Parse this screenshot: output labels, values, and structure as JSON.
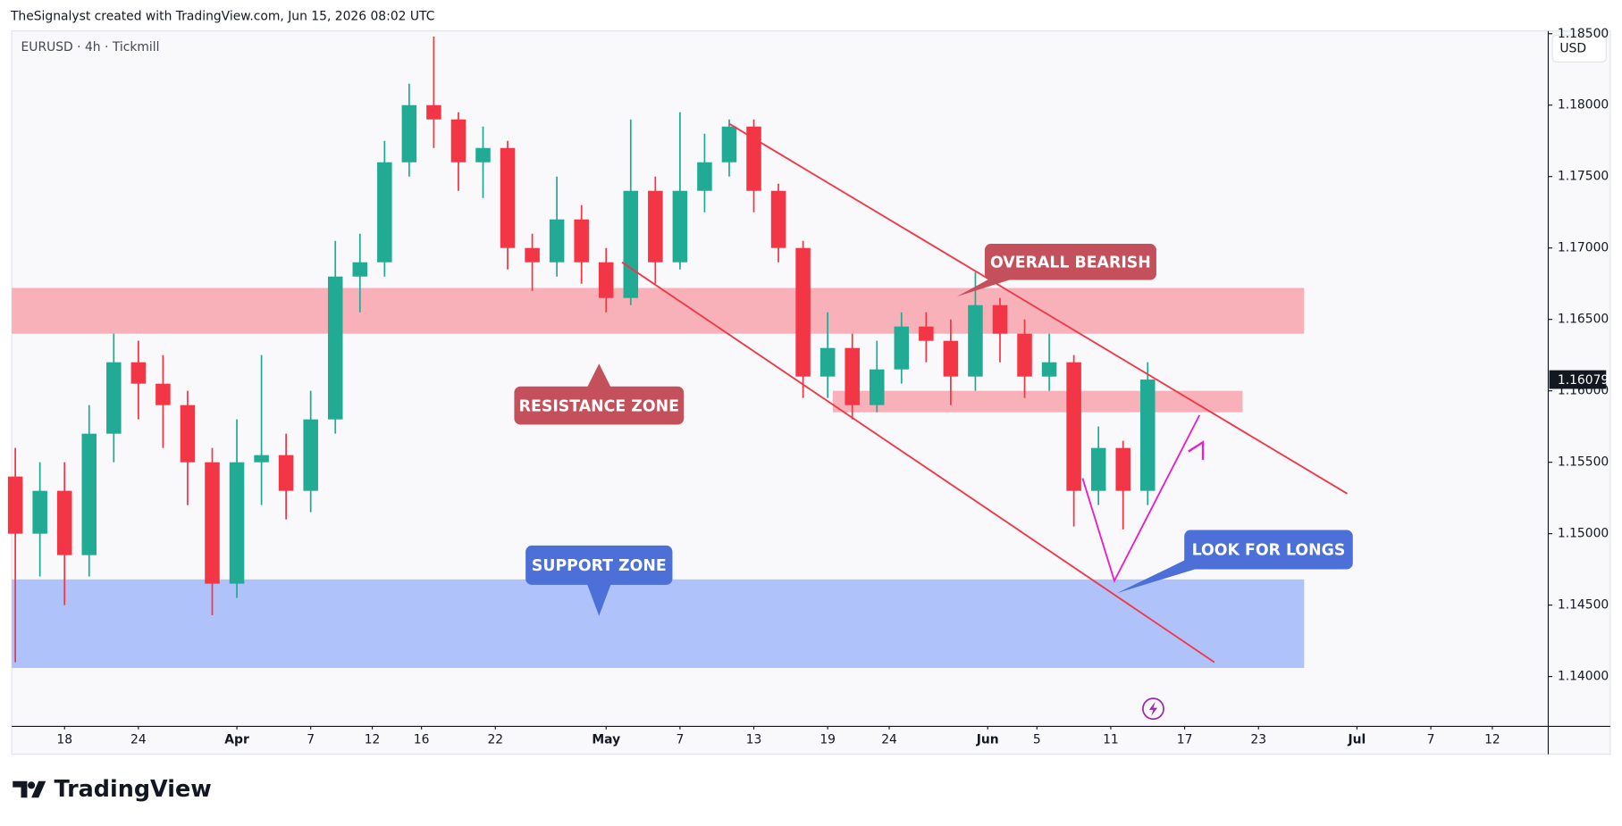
{
  "header": {
    "credit": "TheSignalyst created with TradingView.com, Jun 15, 2026 08:02 UTC",
    "logo": "TradingView"
  },
  "chart_data": {
    "type": "candlestick",
    "title": "EURUSD · 4h · Tickmill",
    "currency": "USD",
    "up_color": "#22ab94",
    "down_color": "#f23645",
    "grid": false,
    "x": [
      "2026-03-14",
      "2026-03-16",
      "2026-03-18",
      "2026-03-20",
      "2026-03-22",
      "2026-03-24",
      "2026-03-26",
      "2026-03-28",
      "2026-03-30",
      "2026-04-01",
      "2026-04-03",
      "2026-04-05",
      "2026-04-07",
      "2026-04-09",
      "2026-04-11",
      "2026-04-13",
      "2026-04-15",
      "2026-04-17",
      "2026-04-19",
      "2026-04-21",
      "2026-04-23",
      "2026-04-25",
      "2026-04-27",
      "2026-04-29",
      "2026-05-01",
      "2026-05-03",
      "2026-05-05",
      "2026-05-07",
      "2026-05-09",
      "2026-05-11",
      "2026-05-13",
      "2026-05-15",
      "2026-05-17",
      "2026-05-19",
      "2026-05-21",
      "2026-05-23",
      "2026-05-25",
      "2026-05-27",
      "2026-05-29",
      "2026-05-31",
      "2026-06-02",
      "2026-06-04",
      "2026-06-06",
      "2026-06-08",
      "2026-06-10",
      "2026-06-12",
      "2026-06-14"
    ],
    "open": [
      1.154,
      1.15,
      1.153,
      1.1485,
      1.157,
      1.162,
      1.1605,
      1.159,
      1.155,
      1.1465,
      1.155,
      1.1555,
      1.153,
      1.158,
      1.168,
      1.169,
      1.176,
      1.18,
      1.179,
      1.176,
      1.177,
      1.17,
      1.169,
      1.172,
      1.169,
      1.1665,
      1.174,
      1.169,
      1.174,
      1.176,
      1.1785,
      1.174,
      1.17,
      1.161,
      1.163,
      1.159,
      1.1615,
      1.1645,
      1.1635,
      1.161,
      1.166,
      1.164,
      1.161,
      1.162,
      1.153,
      1.156,
      1.153
    ],
    "high": [
      1.156,
      1.155,
      1.155,
      1.159,
      1.164,
      1.1635,
      1.1625,
      1.16,
      1.156,
      1.158,
      1.1625,
      1.157,
      1.16,
      1.1705,
      1.171,
      1.1775,
      1.1815,
      1.1848,
      1.1795,
      1.1785,
      1.1775,
      1.171,
      1.175,
      1.173,
      1.17,
      1.179,
      1.175,
      1.1795,
      1.178,
      1.179,
      1.179,
      1.1745,
      1.1705,
      1.1655,
      1.164,
      1.1635,
      1.1655,
      1.1655,
      1.165,
      1.1683,
      1.1665,
      1.165,
      1.164,
      1.1625,
      1.1575,
      1.1565,
      1.162
    ],
    "low": [
      1.141,
      1.147,
      1.145,
      1.147,
      1.155,
      1.158,
      1.156,
      1.152,
      1.1443,
      1.1455,
      1.152,
      1.151,
      1.1515,
      1.157,
      1.1655,
      1.168,
      1.175,
      1.177,
      1.174,
      1.1735,
      1.1685,
      1.167,
      1.168,
      1.1675,
      1.1655,
      1.166,
      1.1675,
      1.1685,
      1.1725,
      1.175,
      1.1725,
      1.169,
      1.1595,
      1.1595,
      1.158,
      1.1585,
      1.1605,
      1.162,
      1.159,
      1.16,
      1.162,
      1.1595,
      1.16,
      1.1505,
      1.152,
      1.1503,
      1.152
    ],
    "close": [
      1.15,
      1.153,
      1.1485,
      1.157,
      1.162,
      1.1605,
      1.159,
      1.155,
      1.1465,
      1.155,
      1.1555,
      1.153,
      1.158,
      1.168,
      1.169,
      1.176,
      1.18,
      1.179,
      1.176,
      1.177,
      1.17,
      1.169,
      1.172,
      1.169,
      1.1665,
      1.174,
      1.169,
      1.174,
      1.176,
      1.1785,
      1.174,
      1.17,
      1.161,
      1.163,
      1.159,
      1.1615,
      1.1645,
      1.1635,
      1.161,
      1.166,
      1.164,
      1.161,
      1.162,
      1.153,
      1.156,
      1.153,
      1.16079
    ],
    "xlim": [
      "2026-03-13T17:00",
      "2026-07-16T13:00"
    ],
    "ylim": [
      1.13673,
      1.18519
    ],
    "yticks": [
      {
        "value": 1.185,
        "label": "1.18500"
      },
      {
        "value": 1.18,
        "label": "1.18000"
      },
      {
        "value": 1.175,
        "label": "1.17500"
      },
      {
        "value": 1.17,
        "label": "1.17000"
      },
      {
        "value": 1.165,
        "label": "1.16500"
      },
      {
        "value": 1.16,
        "label": "1.16000"
      },
      {
        "value": 1.155,
        "label": "1.15500"
      },
      {
        "value": 1.15,
        "label": "1.15000"
      },
      {
        "value": 1.145,
        "label": "1.14500"
      },
      {
        "value": 1.14,
        "label": "1.14000"
      }
    ],
    "xticks": [
      {
        "value": "2026-03-18",
        "label": "18"
      },
      {
        "value": "2026-03-24",
        "label": "24"
      },
      {
        "value": "2026-04-01",
        "label": "Apr"
      },
      {
        "value": "2026-04-07",
        "label": "7"
      },
      {
        "value": "2026-04-12",
        "label": "12"
      },
      {
        "value": "2026-04-16",
        "label": "16"
      },
      {
        "value": "2026-04-22",
        "label": "22"
      },
      {
        "value": "2026-05-01",
        "label": "May"
      },
      {
        "value": "2026-05-07",
        "label": "7"
      },
      {
        "value": "2026-05-13",
        "label": "13"
      },
      {
        "value": "2026-05-19",
        "label": "19"
      },
      {
        "value": "2026-05-24",
        "label": "24"
      },
      {
        "value": "2026-06-01",
        "label": "Jun"
      },
      {
        "value": "2026-06-05",
        "label": "5"
      },
      {
        "value": "2026-06-11",
        "label": "11"
      },
      {
        "value": "2026-06-17",
        "label": "17"
      },
      {
        "value": "2026-06-23",
        "label": "23"
      },
      {
        "value": "2026-07-01",
        "label": "Jul"
      },
      {
        "value": "2026-07-07",
        "label": "7"
      },
      {
        "value": "2026-07-12",
        "label": "12"
      }
    ],
    "zones": [
      {
        "color": "#f7a9b0",
        "x": [
          "2026-03-13T17:00",
          "2026-06-26T17:00"
        ],
        "y": [
          1.164,
          1.1672
        ]
      },
      {
        "color": "#f7a9b0",
        "x": [
          "2026-05-19T10:00",
          "2026-06-21T17:00"
        ],
        "y": [
          1.1585,
          1.16
        ]
      },
      {
        "color": "#a6bbfa",
        "x": [
          "2026-03-13T17:00",
          "2026-06-26T17:00"
        ],
        "y": [
          1.1406,
          1.1468
        ]
      }
    ],
    "lines": [
      {
        "color": "#f23645",
        "x": [
          "2026-05-11T00:00",
          "2026-06-30T05:00"
        ],
        "y": [
          1.1787,
          1.1528
        ]
      },
      {
        "color": "#f23645",
        "x": [
          "2026-05-02T07:00",
          "2026-06-19T10:00"
        ],
        "y": [
          1.169,
          1.141
        ]
      },
      {
        "color": "#e91ec8",
        "x": [
          "2026-06-08T17:00",
          "2026-06-11T07:00",
          "2026-06-18T05:00"
        ],
        "y": [
          1.15388,
          1.1467,
          1.1583
        ]
      }
    ],
    "annotations": [
      {
        "text": "OVERALL BEARISH",
        "color": "#c4505c"
      },
      {
        "text": "RESISTANCE ZONE",
        "color": "#c4505c"
      },
      {
        "text": "SUPPORT ZONE",
        "color": "#4c6fd8"
      },
      {
        "text": "LOOK FOR LONGS",
        "color": "#4c6fd8"
      }
    ]
  }
}
